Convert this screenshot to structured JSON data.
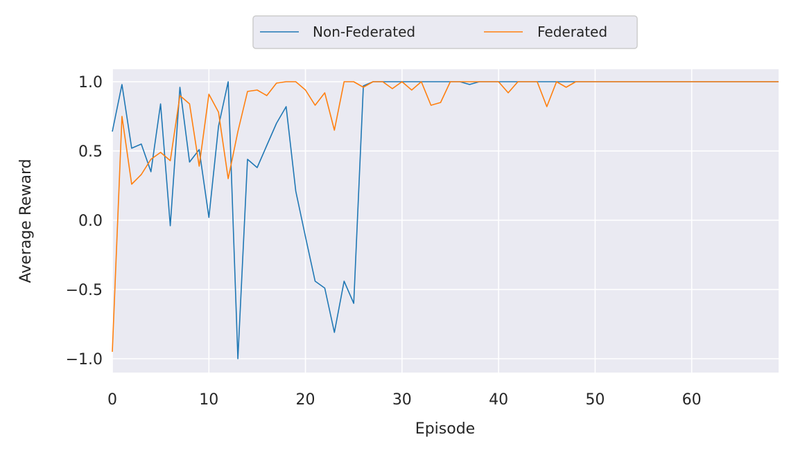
{
  "chart_data": {
    "type": "line",
    "title": "",
    "xlabel": "Episode",
    "ylabel": "Average Reward",
    "xlim": [
      0,
      69
    ],
    "ylim": [
      -1.1,
      1.09
    ],
    "xticks": [
      0,
      10,
      20,
      30,
      40,
      50,
      60
    ],
    "xtick_labels": [
      "0",
      "10",
      "20",
      "30",
      "40",
      "50",
      "60"
    ],
    "yticks": [
      -1.0,
      -0.5,
      0.0,
      0.5,
      1.0
    ],
    "ytick_labels": [
      "−1.0",
      "−0.5",
      "0.0",
      "0.5",
      "1.0"
    ],
    "grid": true,
    "legend_position": "top-center",
    "x": [
      0,
      1,
      2,
      3,
      4,
      5,
      6,
      7,
      8,
      9,
      10,
      11,
      12,
      13,
      14,
      15,
      16,
      17,
      18,
      19,
      20,
      21,
      22,
      23,
      24,
      25,
      26,
      27,
      28,
      29,
      30,
      31,
      32,
      33,
      34,
      35,
      36,
      37,
      38,
      39,
      40,
      41,
      42,
      43,
      44,
      45,
      46,
      47,
      48,
      49,
      50,
      51,
      52,
      53,
      54,
      55,
      56,
      57,
      58,
      59,
      60,
      61,
      62,
      63,
      64,
      65,
      66,
      67,
      68,
      69
    ],
    "series": [
      {
        "name": "Non-Federated",
        "color": "#1f77b4",
        "values": [
          0.64,
          0.98,
          0.52,
          0.55,
          0.35,
          0.84,
          -0.04,
          0.96,
          0.42,
          0.51,
          0.02,
          0.68,
          1.0,
          -1.0,
          0.44,
          0.38,
          0.54,
          0.7,
          0.82,
          0.21,
          -0.12,
          -0.44,
          -0.49,
          -0.81,
          -0.44,
          -0.6,
          0.97,
          1.0,
          1.0,
          1.0,
          1.0,
          1.0,
          1.0,
          1.0,
          1.0,
          1.0,
          1.0,
          0.98,
          1.0,
          1.0,
          1.0,
          1.0,
          1.0,
          1.0,
          1.0,
          1.0,
          1.0,
          1.0,
          1.0,
          1.0,
          1.0,
          1.0,
          1.0,
          1.0,
          1.0,
          1.0,
          1.0,
          1.0,
          1.0,
          1.0,
          1.0,
          1.0,
          1.0,
          1.0,
          1.0,
          1.0,
          1.0,
          1.0,
          1.0,
          1.0
        ]
      },
      {
        "name": "Federated",
        "color": "#ff7f0e",
        "values": [
          -0.95,
          0.75,
          0.26,
          0.33,
          0.44,
          0.49,
          0.43,
          0.9,
          0.84,
          0.39,
          0.91,
          0.78,
          0.3,
          0.64,
          0.93,
          0.94,
          0.9,
          0.99,
          1.0,
          1.0,
          0.94,
          0.83,
          0.92,
          0.65,
          1.0,
          1.0,
          0.96,
          1.0,
          1.0,
          0.95,
          1.0,
          0.94,
          1.0,
          0.83,
          0.85,
          1.0,
          1.0,
          1.0,
          1.0,
          1.0,
          1.0,
          0.92,
          1.0,
          1.0,
          1.0,
          0.82,
          1.0,
          0.96,
          1.0,
          1.0,
          1.0,
          1.0,
          1.0,
          1.0,
          1.0,
          1.0,
          1.0,
          1.0,
          1.0,
          1.0,
          1.0,
          1.0,
          1.0,
          1.0,
          1.0,
          1.0,
          1.0,
          1.0,
          1.0,
          1.0
        ]
      }
    ]
  }
}
